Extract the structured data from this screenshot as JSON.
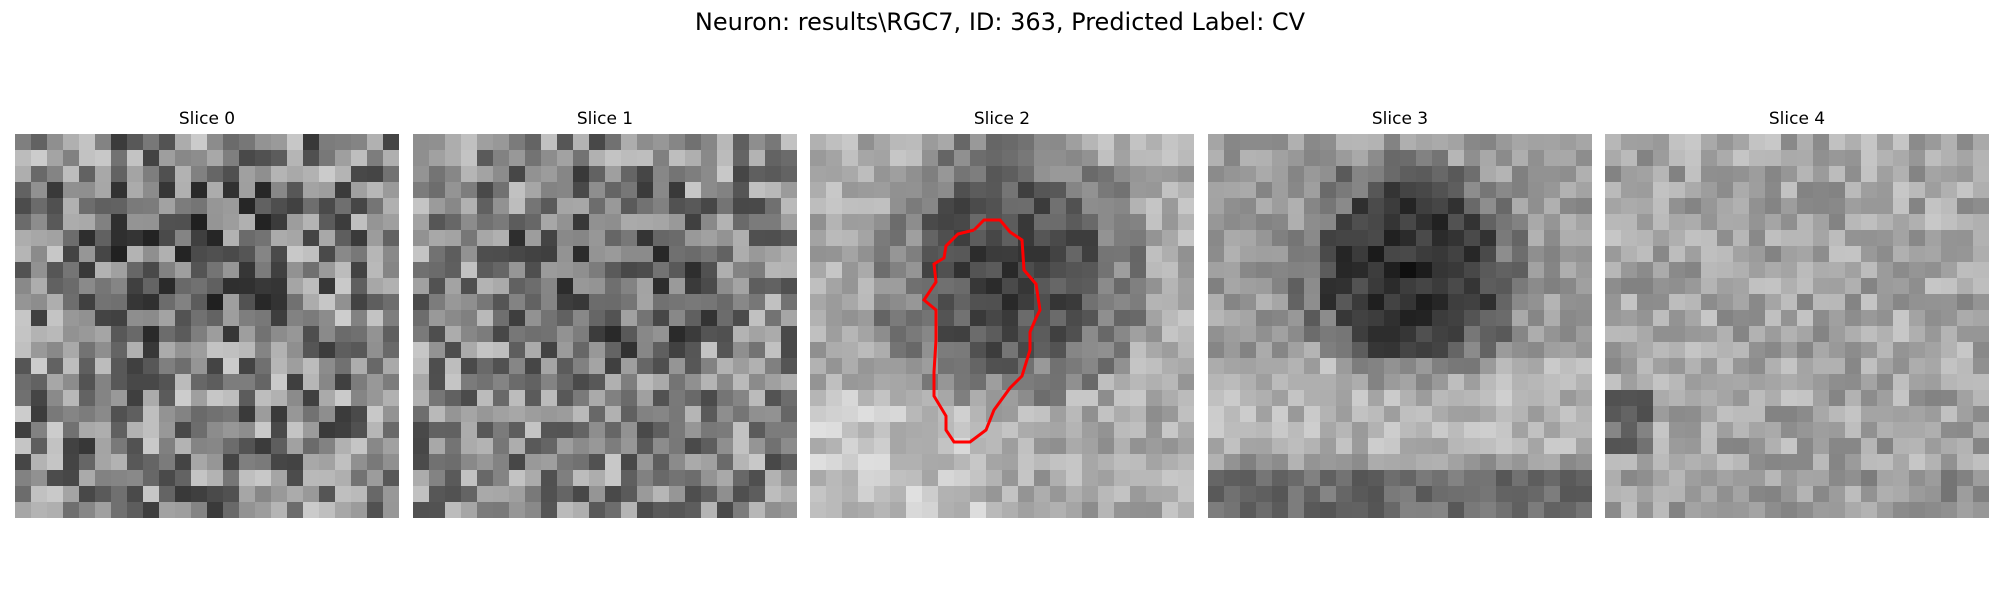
{
  "figure": {
    "title": "Neuron: results\\RGC7, ID: 363, Predicted Label: CV"
  },
  "panels": [
    {
      "title": "Slice 0",
      "has_contour": false
    },
    {
      "title": "Slice 1",
      "has_contour": false
    },
    {
      "title": "Slice 2",
      "has_contour": true
    },
    {
      "title": "Slice 3",
      "has_contour": false
    },
    {
      "title": "Slice 4",
      "has_contour": false
    }
  ],
  "style": {
    "contour_color": "#ff0000",
    "colormap": "gray"
  }
}
